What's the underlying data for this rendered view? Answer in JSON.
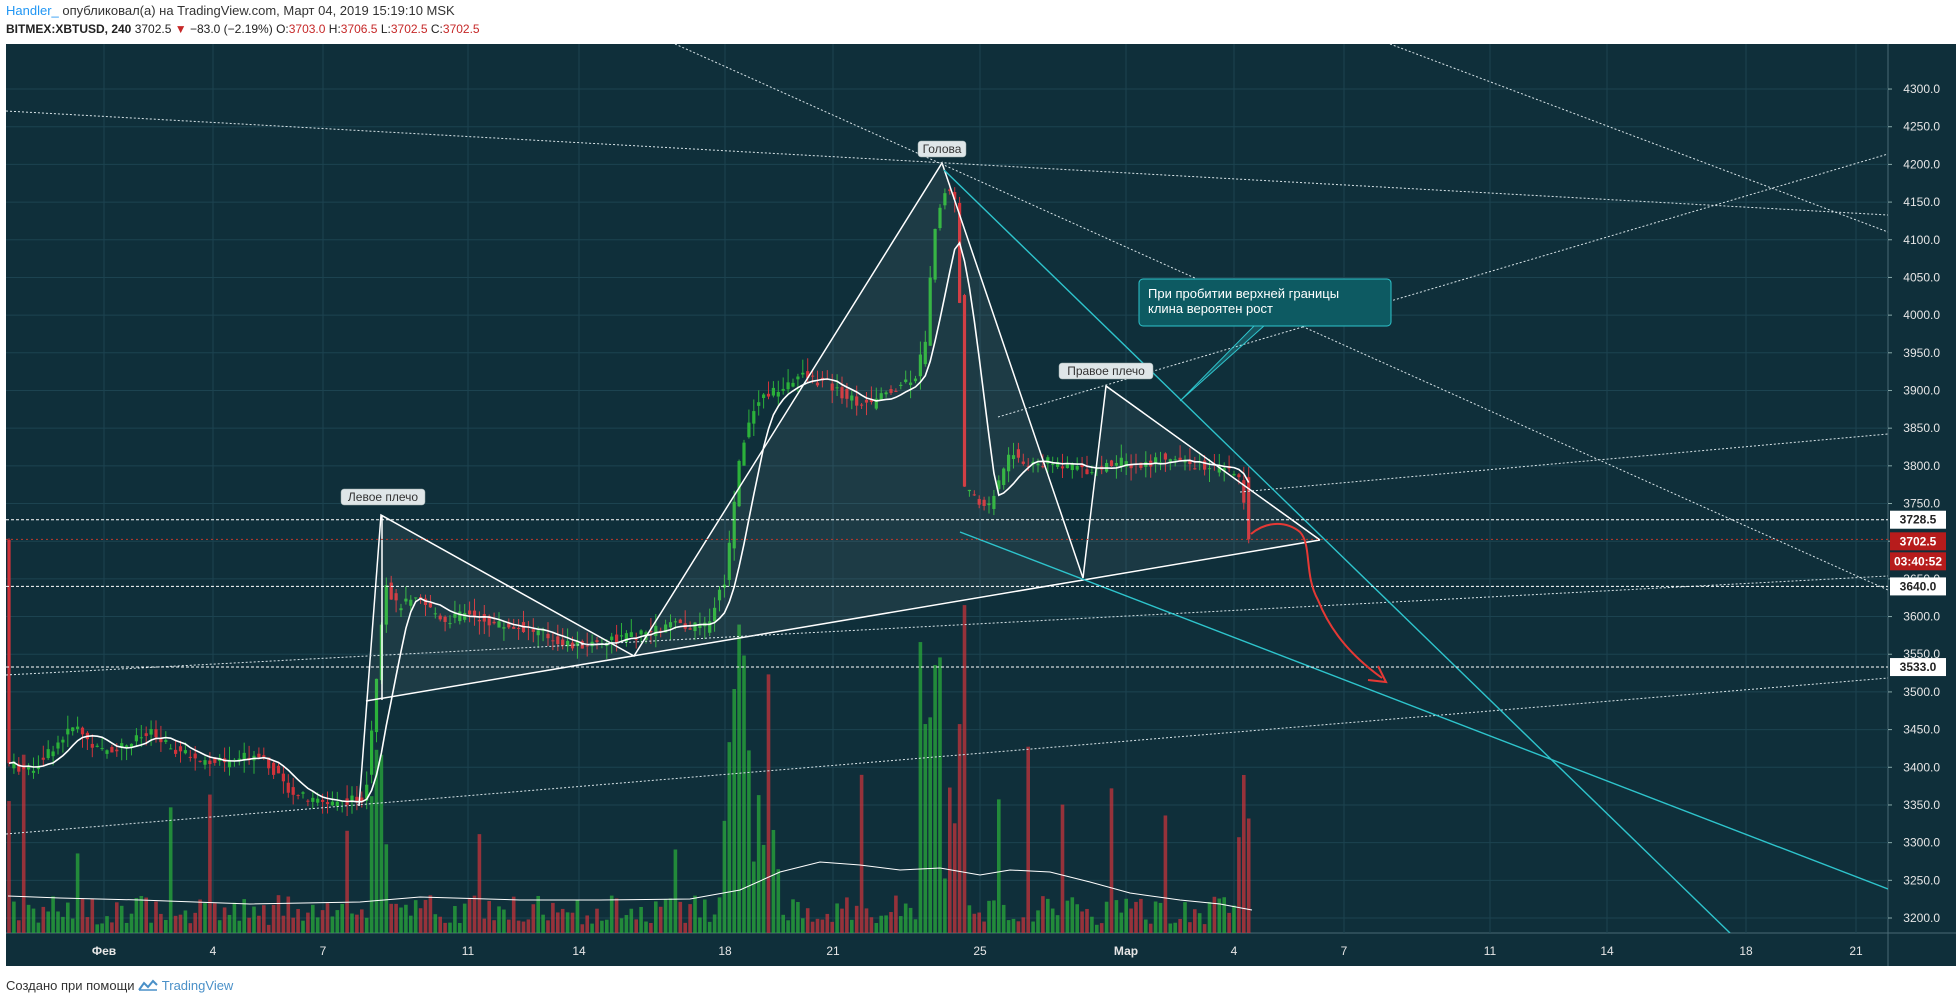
{
  "header": {
    "author": "Handler_",
    "published_text": "опубликовал(а) на TradingView.com, Март 04, 2019 15:19:10 MSK",
    "symbol": "BITMEX:XBTUSD, 240",
    "last": "3702.5",
    "change_arrow": "▼",
    "change": "−83.0 (−2.19%)",
    "o_label": "O:",
    "o": "3703.0",
    "h_label": "H:",
    "h": "3706.5",
    "l_label": "L:",
    "l": "3702.5",
    "c_label": "C:",
    "c": "3702.5"
  },
  "footer": {
    "created_text": "Создано при помощи",
    "brand": "TradingView"
  },
  "colors": {
    "background": "#0f2f3a",
    "grid": "#1c4350",
    "up": "#2bb13a",
    "down": "#d0333a",
    "ma": "#ffffff",
    "teal": "#2ec4cc",
    "axis_text": "#e6e6e6",
    "price_badge": "#b71c1c"
  },
  "annotations": {
    "left_shoulder": "Левое плечо",
    "head": "Голова",
    "right_shoulder": "Правое плечо",
    "callout_line1": "При пробитии верхней границы",
    "callout_line2": "клина вероятен рост"
  },
  "price_tags": {
    "level_1": "3728.5",
    "current": "3702.5",
    "countdown": "03:40:52",
    "level_2": "3640.0",
    "level_3": "3533.0"
  },
  "chart_data": {
    "type": "line",
    "symbol": "BITMEX:XBTUSD",
    "interval": "240",
    "y_axis_ticks": [
      "4300.0",
      "4250.0",
      "4200.0",
      "4150.0",
      "4100.0",
      "4050.0",
      "4000.0",
      "3950.0",
      "3900.0",
      "3850.0",
      "3800.0",
      "3750.0",
      "3700.0",
      "3650.0",
      "3600.0",
      "3550.0",
      "3500.0",
      "3450.0",
      "3400.0",
      "3350.0",
      "3300.0",
      "3250.0",
      "3200.0"
    ],
    "ylim": [
      3185,
      4330
    ],
    "x_axis_ticks": [
      "Фев",
      "4",
      "7",
      "11",
      "14",
      "18",
      "21",
      "25",
      "Мар",
      "4",
      "7",
      "11",
      "14",
      "18",
      "21"
    ],
    "grid": true,
    "series": [
      {
        "type": "line",
        "x": [
          "Фев",
          "4",
          "7",
          "8",
          "11",
          "14",
          "15",
          "18",
          "21",
          "24",
          "25",
          "28",
          "Мар",
          "4",
          "5"
        ],
        "y": [
          3420,
          3410,
          3350,
          3690,
          3615,
          3575,
          3545,
          3580,
          3900,
          4170,
          3760,
          3790,
          3820,
          3780,
          3700
        ]
      }
    ],
    "pattern": {
      "left_shoulder": {
        "x": "8",
        "y": 3730
      },
      "head": {
        "x": "24",
        "y": 4190
      },
      "right_shoulder": {
        "x": "Мар",
        "y": 3895
      },
      "neckline_low_1": {
        "x": "15",
        "y": 3545
      },
      "neckline_low_2": {
        "x": "28",
        "y": 3643
      }
    },
    "horizontal_levels": [
      3728.5,
      3640.0,
      3533.0
    ],
    "last_price": 3702.5
  }
}
